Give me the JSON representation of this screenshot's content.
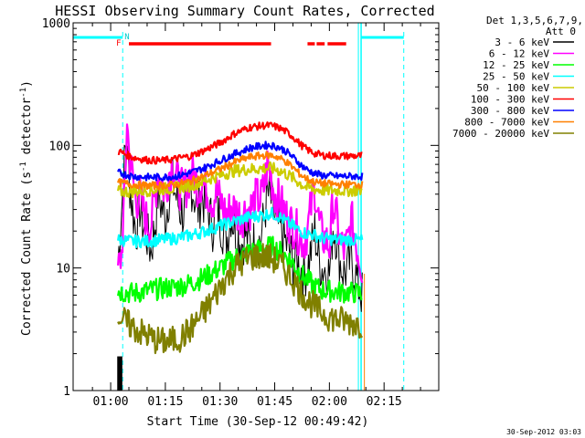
{
  "chart_data": {
    "type": "line",
    "title": "HESSI Observing Summary Count Rates, Corrected",
    "xlabel": "Start Time (30-Sep-12 00:49:42)",
    "ylabel_main": "Corrected Count Rate (s",
    "ylabel_sup1": "-1",
    "ylabel_mid": " detector",
    "ylabel_sup2": "-1",
    "ylabel_end": ")",
    "y_scale": "log",
    "ylim": [
      1,
      1000
    ],
    "xlim_minutes": [
      49.7,
      150
    ],
    "x_ticks": [
      {
        "label": "01:00",
        "m": 60
      },
      {
        "label": "01:15",
        "m": 75
      },
      {
        "label": "01:30",
        "m": 90
      },
      {
        "label": "01:45",
        "m": 105
      },
      {
        "label": "02:00",
        "m": 120
      },
      {
        "label": "02:15",
        "m": 135
      }
    ],
    "y_tick_labels": [
      {
        "label": "1",
        "v": 1
      },
      {
        "label": "10",
        "v": 10
      },
      {
        "label": "100",
        "v": 100
      },
      {
        "label": "1000",
        "v": 1000
      }
    ],
    "legend": {
      "header1": "Det 1,3,5,6,7,9,",
      "header2": "Att 0",
      "position": "right"
    },
    "flags": {
      "flare_marker": "F",
      "night_marker": "N"
    },
    "timestamp": "30-Sep-2012 03:03",
    "series": [
      {
        "name": "3 - 6 keV",
        "color": "#000000",
        "points": [
          [
            62,
            11
          ],
          [
            63,
            30
          ],
          [
            64,
            90
          ],
          [
            64.5,
            100
          ],
          [
            65,
            55
          ],
          [
            66,
            30
          ],
          [
            67,
            20
          ],
          [
            68,
            32
          ],
          [
            69,
            22
          ],
          [
            70,
            18
          ],
          [
            71,
            14
          ],
          [
            72,
            20
          ],
          [
            73,
            40
          ],
          [
            74,
            32
          ],
          [
            75,
            25
          ],
          [
            76,
            40
          ],
          [
            77,
            50
          ],
          [
            78,
            38
          ],
          [
            79,
            30
          ],
          [
            80,
            28
          ],
          [
            81,
            33
          ],
          [
            82,
            50
          ],
          [
            83,
            38
          ],
          [
            84,
            30
          ],
          [
            85,
            40
          ],
          [
            86,
            32
          ],
          [
            87,
            28
          ],
          [
            88,
            22
          ],
          [
            89,
            32
          ],
          [
            90,
            25
          ],
          [
            91,
            20
          ],
          [
            92,
            18
          ],
          [
            93,
            28
          ],
          [
            94,
            22
          ],
          [
            95,
            18
          ],
          [
            96,
            16
          ],
          [
            97,
            19
          ],
          [
            98,
            16
          ],
          [
            99,
            15
          ],
          [
            100,
            18
          ],
          [
            101,
            16
          ],
          [
            102,
            25
          ],
          [
            103,
            40
          ],
          [
            104,
            35
          ],
          [
            105,
            25
          ],
          [
            106,
            22
          ],
          [
            107,
            19
          ],
          [
            108,
            16
          ],
          [
            109,
            14
          ],
          [
            110,
            11
          ],
          [
            111,
            12
          ],
          [
            112,
            10
          ],
          [
            113,
            9
          ],
          [
            114,
            10
          ],
          [
            115,
            14
          ],
          [
            116,
            20
          ],
          [
            117,
            12
          ],
          [
            118,
            10
          ],
          [
            119,
            10
          ],
          [
            120,
            9
          ],
          [
            121,
            22
          ],
          [
            122,
            18
          ],
          [
            123,
            11
          ],
          [
            124,
            9
          ],
          [
            125,
            10
          ],
          [
            126,
            12
          ],
          [
            127,
            9
          ],
          [
            128,
            7
          ],
          [
            129,
            6
          ]
        ]
      },
      {
        "name": "6 - 12 keV",
        "color": "#ff00ff",
        "points": [
          [
            62,
            9.5
          ],
          [
            63,
            13
          ],
          [
            64,
            50
          ],
          [
            64.5,
            170
          ],
          [
            65,
            90
          ],
          [
            66,
            55
          ],
          [
            67,
            35
          ],
          [
            68,
            40
          ],
          [
            69,
            28
          ],
          [
            70,
            24
          ],
          [
            71,
            22
          ],
          [
            72,
            35
          ],
          [
            73,
            60
          ],
          [
            74,
            50
          ],
          [
            75,
            40
          ],
          [
            76,
            60
          ],
          [
            77,
            70
          ],
          [
            78,
            55
          ],
          [
            79,
            45
          ],
          [
            80,
            42
          ],
          [
            81,
            48
          ],
          [
            82,
            60
          ],
          [
            83,
            55
          ],
          [
            84,
            45
          ],
          [
            85,
            52
          ],
          [
            86,
            45
          ],
          [
            87,
            40
          ],
          [
            88,
            35
          ],
          [
            89,
            42
          ],
          [
            90,
            36
          ],
          [
            91,
            30
          ],
          [
            92,
            27
          ],
          [
            93,
            32
          ],
          [
            94,
            30
          ],
          [
            95,
            28
          ],
          [
            96,
            26
          ],
          [
            97,
            30
          ],
          [
            98,
            30
          ],
          [
            99,
            32
          ],
          [
            100,
            38
          ],
          [
            101,
            35
          ],
          [
            102,
            45
          ],
          [
            103,
            70
          ],
          [
            104,
            55
          ],
          [
            105,
            40
          ],
          [
            106,
            36
          ],
          [
            107,
            32
          ],
          [
            108,
            27
          ],
          [
            109,
            24
          ],
          [
            110,
            22
          ],
          [
            111,
            20
          ],
          [
            112,
            18
          ],
          [
            113,
            16
          ],
          [
            114,
            20
          ],
          [
            115,
            32
          ],
          [
            116,
            45
          ],
          [
            117,
            25
          ],
          [
            118,
            18
          ],
          [
            119,
            17
          ],
          [
            120,
            15
          ],
          [
            121,
            35
          ],
          [
            122,
            25
          ],
          [
            123,
            16
          ],
          [
            124,
            14
          ],
          [
            125,
            16
          ],
          [
            126,
            25
          ],
          [
            127,
            18
          ],
          [
            128,
            13
          ],
          [
            129,
            10
          ]
        ]
      },
      {
        "name": "12 - 25 keV",
        "color": "#00ff00",
        "points": [
          [
            62,
            6.5
          ],
          [
            66,
            6.2
          ],
          [
            70,
            6.5
          ],
          [
            74,
            6.8
          ],
          [
            78,
            7
          ],
          [
            82,
            7.5
          ],
          [
            86,
            8.5
          ],
          [
            90,
            10
          ],
          [
            94,
            12
          ],
          [
            98,
            13.5
          ],
          [
            102,
            14.5
          ],
          [
            104,
            15
          ],
          [
            106,
            14
          ],
          [
            108,
            12.5
          ],
          [
            110,
            11
          ],
          [
            112,
            9
          ],
          [
            114,
            8
          ],
          [
            116,
            7
          ],
          [
            118,
            6.6
          ],
          [
            122,
            6.4
          ],
          [
            126,
            6.3
          ],
          [
            129,
            6.2
          ]
        ]
      },
      {
        "name": "25 - 50 keV",
        "color": "#00ffff",
        "points": [
          [
            62,
            17
          ],
          [
            66,
            16.5
          ],
          [
            70,
            16.5
          ],
          [
            74,
            17
          ],
          [
            78,
            17.5
          ],
          [
            82,
            18.5
          ],
          [
            86,
            20
          ],
          [
            90,
            22
          ],
          [
            94,
            24
          ],
          [
            98,
            26
          ],
          [
            102,
            27
          ],
          [
            104,
            28
          ],
          [
            106,
            26.5
          ],
          [
            108,
            24
          ],
          [
            110,
            22
          ],
          [
            112,
            20
          ],
          [
            114,
            19
          ],
          [
            116,
            18.5
          ],
          [
            118,
            17.5
          ],
          [
            122,
            17
          ],
          [
            126,
            17
          ],
          [
            129,
            16.8
          ]
        ]
      },
      {
        "name": "50 - 100 keV",
        "color": "#cccc00",
        "points": [
          [
            62,
            42
          ],
          [
            66,
            42
          ],
          [
            70,
            43
          ],
          [
            74,
            44
          ],
          [
            78,
            45
          ],
          [
            82,
            47
          ],
          [
            86,
            52
          ],
          [
            90,
            57
          ],
          [
            94,
            62
          ],
          [
            98,
            64
          ],
          [
            102,
            65
          ],
          [
            104,
            65
          ],
          [
            106,
            63
          ],
          [
            108,
            59
          ],
          [
            110,
            54
          ],
          [
            112,
            49
          ],
          [
            114,
            45
          ],
          [
            116,
            44
          ],
          [
            118,
            43
          ],
          [
            122,
            43
          ],
          [
            126,
            43
          ],
          [
            129,
            43
          ]
        ]
      },
      {
        "name": "100 - 300 keV",
        "color": "#ff0000",
        "points": [
          [
            62,
            90
          ],
          [
            66,
            80
          ],
          [
            70,
            76
          ],
          [
            74,
            75
          ],
          [
            78,
            78
          ],
          [
            82,
            82
          ],
          [
            86,
            92
          ],
          [
            90,
            105
          ],
          [
            94,
            125
          ],
          [
            98,
            140
          ],
          [
            102,
            145
          ],
          [
            104,
            145
          ],
          [
            106,
            140
          ],
          [
            108,
            130
          ],
          [
            110,
            118
          ],
          [
            112,
            102
          ],
          [
            114,
            92
          ],
          [
            116,
            86
          ],
          [
            118,
            83
          ],
          [
            122,
            82
          ],
          [
            126,
            82
          ],
          [
            129,
            82
          ]
        ]
      },
      {
        "name": "300 - 800 keV",
        "color": "#0000ff",
        "points": [
          [
            62,
            60
          ],
          [
            66,
            56
          ],
          [
            70,
            55
          ],
          [
            74,
            55
          ],
          [
            78,
            56
          ],
          [
            82,
            60
          ],
          [
            86,
            66
          ],
          [
            90,
            75
          ],
          [
            94,
            85
          ],
          [
            98,
            95
          ],
          [
            102,
            100
          ],
          [
            104,
            100
          ],
          [
            106,
            97
          ],
          [
            108,
            90
          ],
          [
            110,
            80
          ],
          [
            112,
            70
          ],
          [
            114,
            63
          ],
          [
            116,
            59
          ],
          [
            118,
            57
          ],
          [
            122,
            56
          ],
          [
            126,
            56
          ],
          [
            129,
            56
          ]
        ]
      },
      {
        "name": "800 - 7000 keV",
        "color": "#ff8000",
        "points": [
          [
            62,
            50
          ],
          [
            66,
            48
          ],
          [
            70,
            47
          ],
          [
            74,
            47
          ],
          [
            78,
            48
          ],
          [
            82,
            51
          ],
          [
            86,
            57
          ],
          [
            90,
            64
          ],
          [
            94,
            73
          ],
          [
            98,
            80
          ],
          [
            102,
            83
          ],
          [
            104,
            83
          ],
          [
            106,
            80
          ],
          [
            108,
            74
          ],
          [
            110,
            66
          ],
          [
            112,
            58
          ],
          [
            114,
            53
          ],
          [
            116,
            50
          ],
          [
            118,
            49
          ],
          [
            122,
            48
          ],
          [
            126,
            48
          ],
          [
            129,
            48
          ]
        ]
      },
      {
        "name": "7000 - 20000 keV",
        "color": "#808000",
        "points": [
          [
            62,
            4.2
          ],
          [
            64,
            3.6
          ],
          [
            66,
            3.3
          ],
          [
            68,
            3.0
          ],
          [
            70,
            2.8
          ],
          [
            72,
            2.6
          ],
          [
            74,
            2.5
          ],
          [
            76,
            2.5
          ],
          [
            78,
            2.6
          ],
          [
            80,
            2.8
          ],
          [
            82,
            3.2
          ],
          [
            84,
            3.8
          ],
          [
            86,
            4.5
          ],
          [
            88,
            5.5
          ],
          [
            90,
            7
          ],
          [
            92,
            8.5
          ],
          [
            94,
            10
          ],
          [
            96,
            11
          ],
          [
            98,
            12
          ],
          [
            100,
            12.5
          ],
          [
            102,
            12.5
          ],
          [
            104,
            12
          ],
          [
            106,
            11
          ],
          [
            108,
            9.5
          ],
          [
            110,
            8
          ],
          [
            112,
            6.5
          ],
          [
            114,
            5.5
          ],
          [
            116,
            4.8
          ],
          [
            118,
            4.3
          ],
          [
            120,
            4
          ],
          [
            122,
            3.8
          ],
          [
            124,
            3.7
          ],
          [
            126,
            3.6
          ],
          [
            128,
            3.5
          ],
          [
            129,
            3.5
          ]
        ]
      }
    ]
  }
}
